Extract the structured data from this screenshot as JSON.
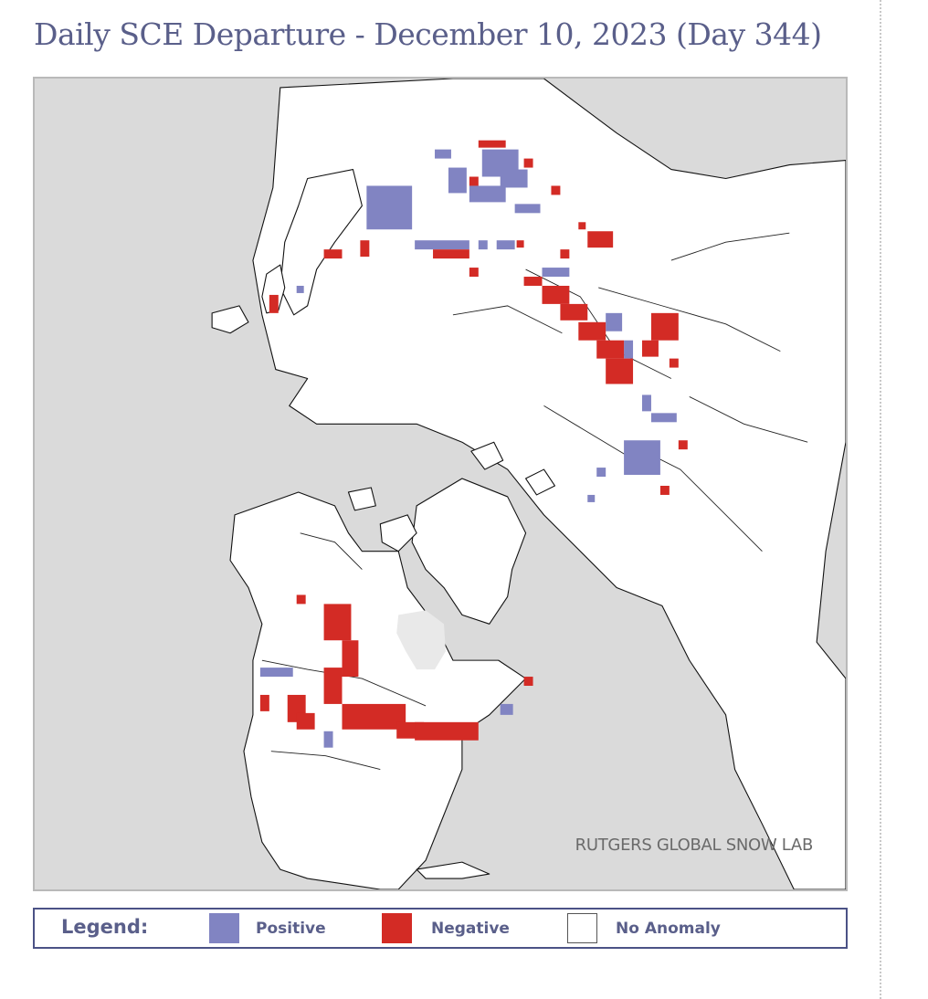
{
  "page": {
    "title": "Daily SCE Departure - December 10, 2023 (Day 344)"
  },
  "map": {
    "credit": "RUTGERS GLOBAL SNOW LAB",
    "colors": {
      "positive": "#8184c2",
      "negative": "#d32b25",
      "no_anomaly": "#ffffff",
      "ocean": "#dadada",
      "sea_ice": "#e9e9e9"
    }
  },
  "legend": {
    "title": "Legend:",
    "items": [
      {
        "label": "Positive",
        "color": "#8184c2"
      },
      {
        "label": "Negative",
        "color": "#d32b25"
      },
      {
        "label": "No Anomaly",
        "color": "#ffffff"
      }
    ]
  }
}
